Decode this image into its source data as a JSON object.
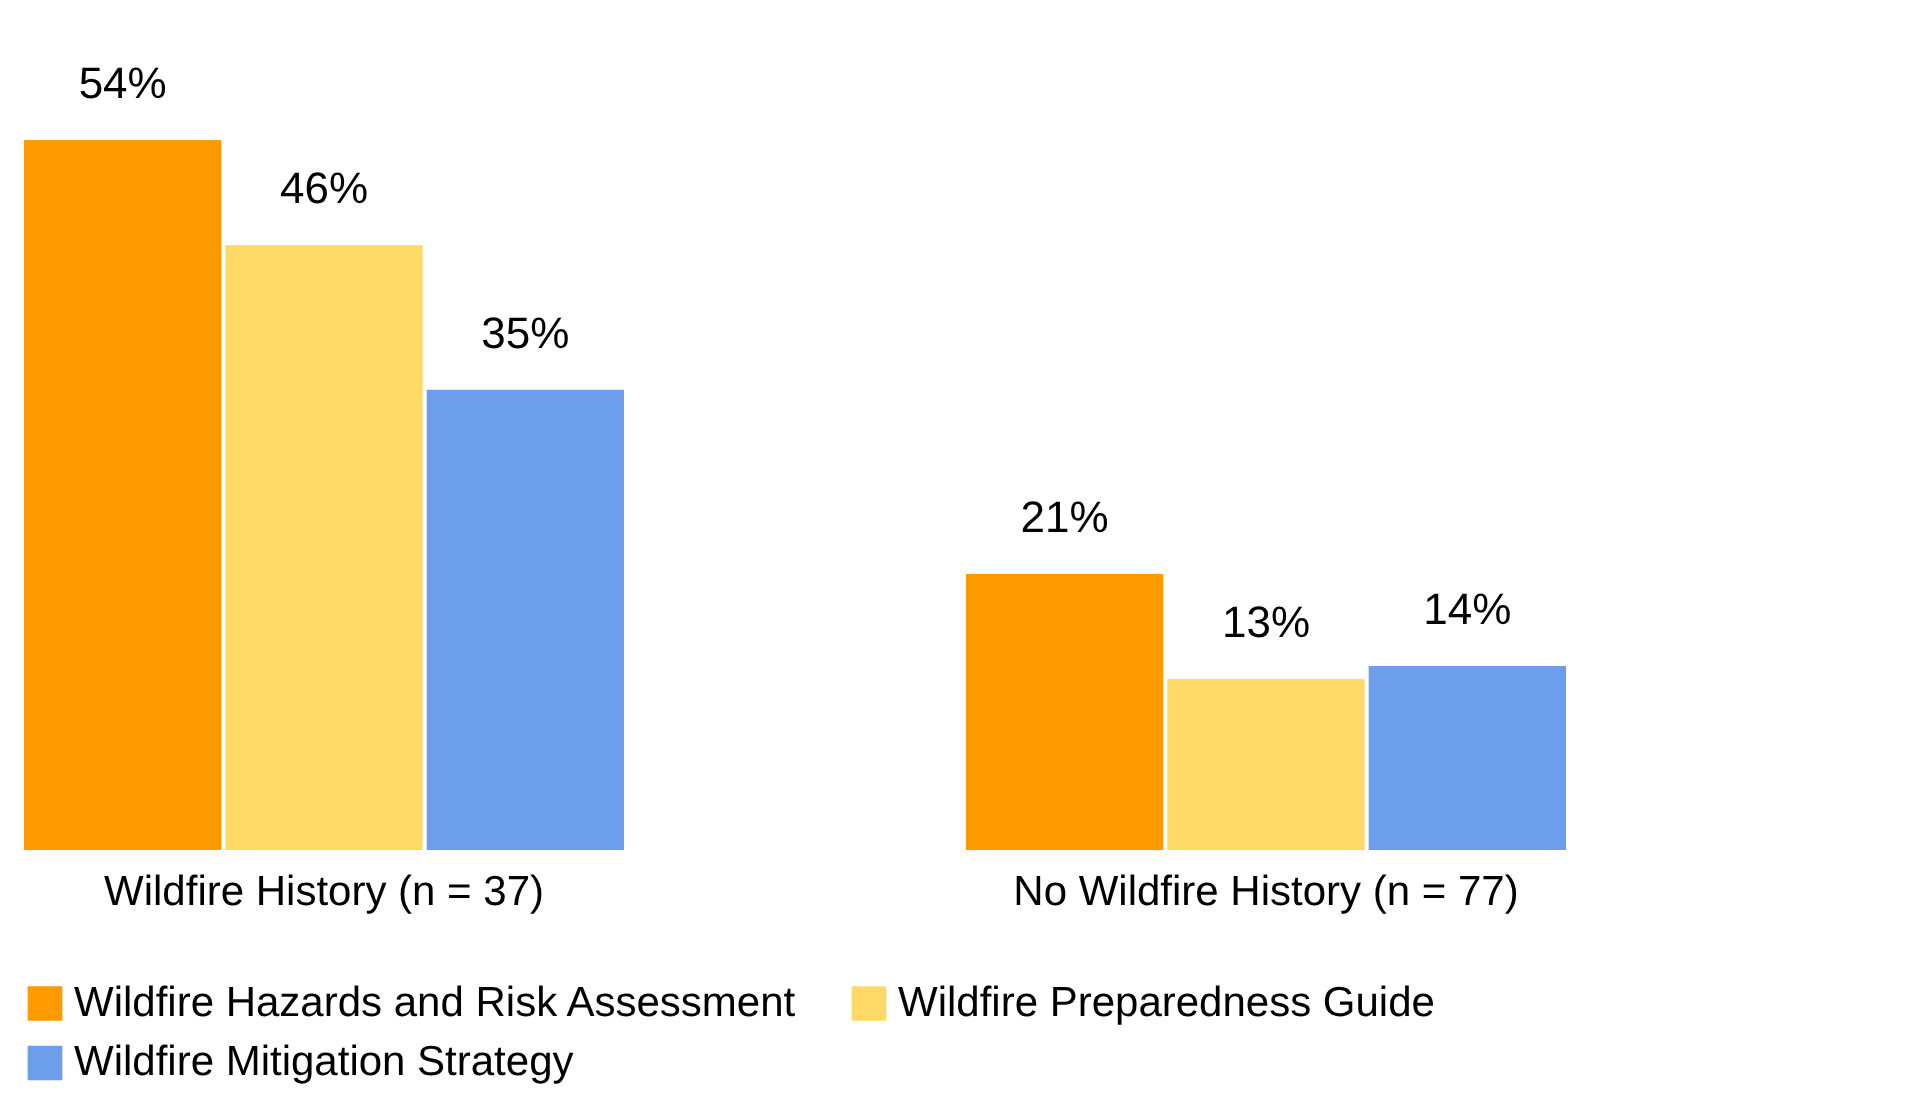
{
  "chart_data": {
    "type": "bar",
    "categories": [
      "Wildfire History (n = 37)",
      "No Wildfire History (n = 77)"
    ],
    "series": [
      {
        "name": "Wildfire Hazards and Risk Assessment",
        "color": "#ff9900",
        "values": [
          54,
          21
        ],
        "value_labels": [
          "54%",
          "21%"
        ]
      },
      {
        "name": "Wildfire Preparedness Guide",
        "color": "#ffd966",
        "values": [
          46,
          13
        ],
        "value_labels": [
          "46%",
          "13%"
        ]
      },
      {
        "name": "Wildfire Mitigation Strategy",
        "color": "#6d9eeb",
        "values": [
          35,
          14
        ],
        "value_labels": [
          "35%",
          "14%"
        ]
      }
    ],
    "legend": "bottom",
    "grid": false
  }
}
